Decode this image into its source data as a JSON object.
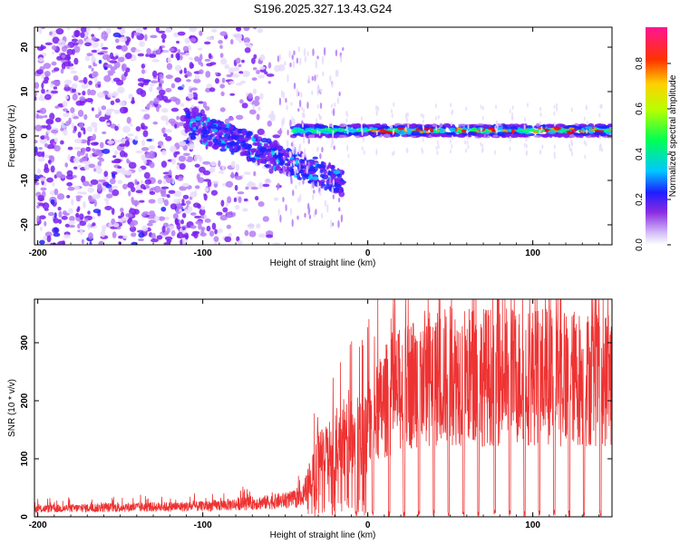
{
  "title": "S196.2025.327.13.43.G24",
  "chart_data": [
    {
      "type": "heatmap",
      "title": "S196.2025.327.13.43.G24",
      "xlabel": "Height of straight line (km)",
      "ylabel": "Frequency (Hz)",
      "xlim": [
        -202,
        148
      ],
      "ylim": [
        -24.5,
        24.5
      ],
      "xticks": [
        -200,
        -100,
        0,
        100
      ],
      "xtick_labels": [
        "-200",
        "-100",
        "0",
        "100"
      ],
      "yticks": [
        -20,
        -10,
        0,
        10,
        20
      ],
      "ytick_labels": [
        "-20",
        "-10",
        "0",
        "10",
        "20"
      ],
      "colorbar": {
        "label": "Normalized spectral amplitude",
        "ticks": [
          0.0,
          0.2,
          0.4,
          0.6,
          0.8
        ],
        "tick_labels": [
          "0.0",
          "0.2",
          "0.4",
          "0.6",
          "0.8"
        ],
        "range": [
          0.0,
          0.96
        ]
      },
      "colormap": [
        "#ffffff",
        "#e8dcfb",
        "#b57cf5",
        "#7a1ff0",
        "#2222ff",
        "#00c8ff",
        "#00ff66",
        "#c8ff00",
        "#ff9900",
        "#ff0000",
        "#ff1493"
      ],
      "features": {
        "band_centre_hz_from_x_0": 1.2,
        "band_peak_amplitude": 0.9,
        "noise_region_x": [
          -202,
          -50
        ]
      }
    },
    {
      "type": "line",
      "xlabel": "Height of straight line (km)",
      "ylabel": "SNR (10 * v/v)",
      "xlim": [
        -202,
        148
      ],
      "ylim": [
        0,
        375
      ],
      "xticks": [
        -200,
        -100,
        0,
        100
      ],
      "xtick_labels": [
        "-200",
        "-100",
        "0",
        "100"
      ],
      "yticks": [
        0,
        100,
        200,
        300
      ],
      "ytick_labels": [
        "0",
        "100",
        "200",
        "300"
      ],
      "color": "#ee3333",
      "series": [
        {
          "name": "SNR",
          "envelope_x": [
            -202,
            -150,
            -100,
            -60,
            -40,
            -30,
            -20,
            -10,
            0,
            10,
            20,
            30,
            50,
            80,
            110,
            130,
            140,
            148
          ],
          "envelope_y": [
            15,
            18,
            20,
            28,
            35,
            110,
            130,
            150,
            165,
            220,
            240,
            265,
            270,
            270,
            270,
            265,
            265,
            265
          ],
          "dropouts_x": [
            -7,
            3,
            13,
            22,
            31,
            40,
            49,
            58,
            67,
            77,
            86,
            95,
            104,
            113,
            122,
            131,
            141
          ]
        }
      ]
    }
  ]
}
